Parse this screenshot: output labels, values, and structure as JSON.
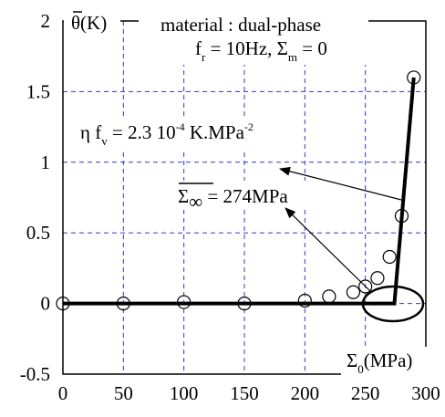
{
  "chart_data": {
    "type": "scatter",
    "title": "",
    "xlim": [
      0,
      300
    ],
    "ylim": [
      -0.5,
      2
    ],
    "x_ticks": [
      "0",
      "50",
      "100",
      "150",
      "200",
      "250",
      "300"
    ],
    "y_ticks": [
      "-0.5",
      "0",
      "0.5",
      "1",
      "1.5",
      "2"
    ],
    "grid": true,
    "xlabel": {
      "main": "Σ",
      "sub": "0",
      "rest": "(MPa)"
    },
    "ylabel": {
      "main": "θ(K)"
    },
    "annotations": {
      "material": "material : dual-phase",
      "freq": {
        "a": "f",
        "a_sub": "r",
        "b": " = 10Hz, Σ",
        "b_sub": "m",
        "c": " = 0"
      },
      "eta": {
        "a": "η f",
        "a_sub": "v",
        "b": " = 2.3 10",
        "b_sup": "-4",
        "c": " K.MPa",
        "c_sup": "-2"
      },
      "sigma_inf": {
        "main": "Σ",
        "sub": "∞",
        "rest": " = 274MPa"
      }
    },
    "series": [
      {
        "marker": "open-circle",
        "x": [
          0,
          50,
          100,
          150,
          200,
          220,
          240,
          250,
          260,
          270,
          280,
          290
        ],
        "y": [
          0,
          0,
          0.01,
          0,
          0.02,
          0.05,
          0.08,
          0.12,
          0.18,
          0.33,
          0.62,
          1.6
        ]
      },
      {
        "marker": "none",
        "style": "thick-line",
        "x": [
          0,
          274,
          290
        ],
        "y": [
          0,
          0,
          1.6
        ]
      }
    ]
  }
}
